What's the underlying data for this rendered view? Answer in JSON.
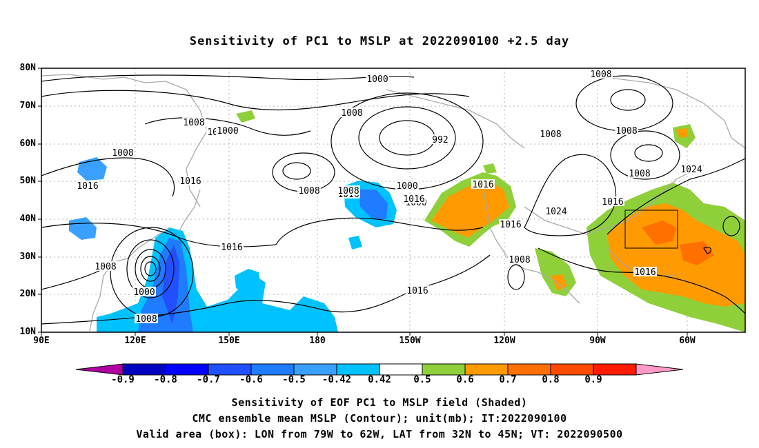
{
  "title": "Sensitivity of PC1 to MSLP at 2022090100 +2.5 day",
  "axes": {
    "lat_labels": [
      "80N",
      "70N",
      "60N",
      "50N",
      "40N",
      "30N",
      "20N",
      "10N"
    ],
    "lon_labels": [
      "90E",
      "120E",
      "150E",
      "180",
      "150W",
      "120W",
      "90W",
      "60W"
    ]
  },
  "contour_labels": [
    "1000",
    "1008",
    "992",
    "1008",
    "1000",
    "1008",
    "1008",
    "1016",
    "1008",
    "1000",
    "1000",
    "1008",
    "1008",
    "1016",
    "1016",
    "1016",
    "1000",
    "1008",
    "1016",
    "1024",
    "1008",
    "1016",
    "1024",
    "1016",
    "1008",
    "1016",
    "1008",
    "1016",
    "1000",
    "1008",
    "1016"
  ],
  "colorbar": {
    "labels": [
      "-0.9",
      "-0.8",
      "-0.7",
      "-0.6",
      "-0.5",
      "-0.42",
      "0.42",
      "0.5",
      "0.6",
      "0.7",
      "0.8",
      "0.9"
    ],
    "colors": [
      "#b000a0",
      "#0000c0",
      "#0000ff",
      "#2050ff",
      "#1f7cff",
      "#3aa0ff",
      "#00c2ff",
      "#ffffff",
      "#8fd03a",
      "#ff9a00",
      "#ff7000",
      "#ff4a00",
      "#ff1a00",
      "#ff9ac8"
    ]
  },
  "captions": [
    "Sensitivity of EOF PC1 to MSLP field (Shaded)",
    "CMC ensemble mean MSLP (Contour); unit(mb); IT:2022090100",
    "Valid area (box): LON from 79W to 62W, LAT from 32N to 45N; VT: 2022090500"
  ]
}
